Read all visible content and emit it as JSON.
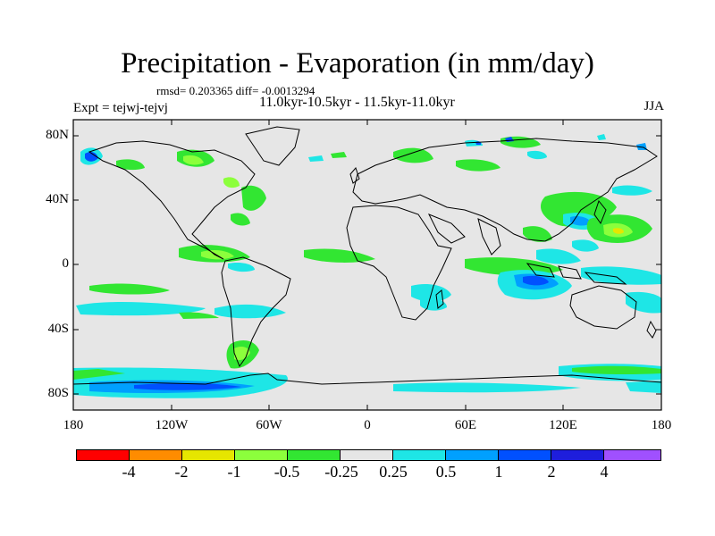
{
  "title": "Precipitation - Evaporation (in mm/day)",
  "stats": "rmsd= 0.203365 diff= -0.0013294",
  "period": "11.0kyr-10.5kyr - 11.5kyr-11.0kyr",
  "experiment": "Expt = tejwj-tejvj",
  "season": "JJA",
  "axes": {
    "lat_ticks": [
      "80N",
      "40N",
      "0",
      "40S",
      "80S"
    ],
    "lon_ticks": [
      "180",
      "120W",
      "60W",
      "0",
      "60E",
      "120E",
      "180"
    ]
  },
  "colorbar": {
    "labels": [
      "-4",
      "-2",
      "-1",
      "-0.5",
      "-0.25",
      "0.25",
      "0.5",
      "1",
      "2",
      "4"
    ],
    "colors": [
      "#ff0000",
      "#ff8c00",
      "#e6e600",
      "#8cff3c",
      "#32e632",
      "#e6e6e6",
      "#1ee6e6",
      "#00a0ff",
      "#0050ff",
      "#1e1edc",
      "#a050ff"
    ]
  }
}
